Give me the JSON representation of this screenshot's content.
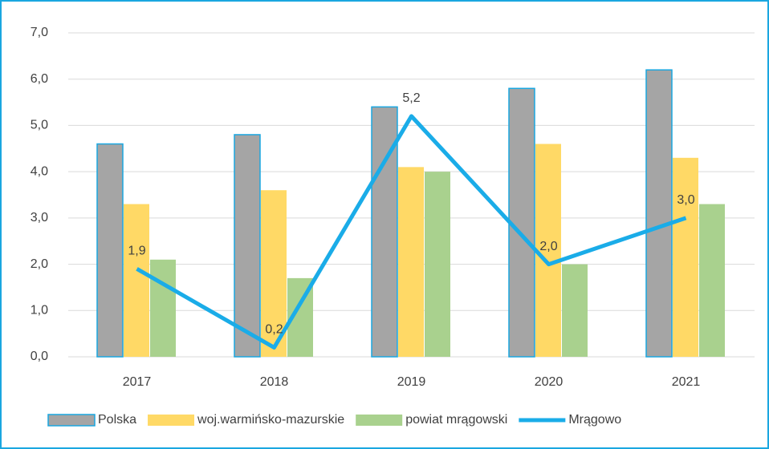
{
  "chart_data": {
    "type": "bar",
    "categories": [
      "2017",
      "2018",
      "2019",
      "2020",
      "2021"
    ],
    "series": [
      {
        "name": "Polska",
        "type": "bar",
        "color": "#a5a5a5",
        "edgecolor": "#1aa7e0",
        "values": [
          4.6,
          4.8,
          5.4,
          5.8,
          6.2
        ]
      },
      {
        "name": "woj.warmińsko-mazurskie",
        "type": "bar",
        "color": "#ffd966",
        "values": [
          3.3,
          3.6,
          4.1,
          4.6,
          4.3
        ]
      },
      {
        "name": "powiat mrągowski",
        "type": "bar",
        "color": "#a9d18e",
        "values": [
          2.1,
          1.7,
          4.0,
          2.0,
          3.3
        ]
      },
      {
        "name": "Mrągowo",
        "type": "line",
        "color": "#1aace8",
        "values": [
          1.9,
          0.2,
          5.2,
          2.0,
          3.0
        ],
        "value_labels": [
          "1,9",
          "0,2",
          "5,2",
          "2,0",
          "3,0"
        ]
      }
    ],
    "ylim": [
      0,
      7
    ],
    "yticks": [
      {
        "value": 0,
        "label": "0,0"
      },
      {
        "value": 1,
        "label": "1,0"
      },
      {
        "value": 2,
        "label": "2,0"
      },
      {
        "value": 3,
        "label": "3,0"
      },
      {
        "value": 4,
        "label": "4,0"
      },
      {
        "value": 5,
        "label": "5,0"
      },
      {
        "value": 6,
        "label": "6,0"
      },
      {
        "value": 7,
        "label": "7,0"
      }
    ],
    "grid": true,
    "legend": "bottom"
  }
}
